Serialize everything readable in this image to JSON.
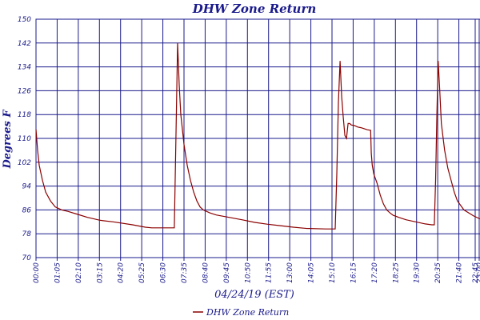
{
  "chart_data": {
    "type": "line",
    "title": "DHW Zone Return",
    "xlabel": "04/24/19 (EST)",
    "ylabel": "Degrees F",
    "ylim": [
      70,
      150
    ],
    "yticks": [
      70,
      78,
      86,
      94,
      102,
      110,
      118,
      126,
      134,
      142,
      150
    ],
    "xlim_minutes": [
      0,
      1380
    ],
    "xtick_labels": [
      "00:00",
      "01:05",
      "02:10",
      "03:15",
      "04:20",
      "05:25",
      "06:30",
      "07:35",
      "08:40",
      "09:45",
      "10:50",
      "11:55",
      "13:00",
      "14:05",
      "15:10",
      "16:15",
      "17:20",
      "18:25",
      "19:30",
      "20:35",
      "21:40",
      "22:45",
      "23:00"
    ],
    "xtick_minutes": [
      0,
      65,
      130,
      195,
      260,
      325,
      390,
      455,
      520,
      585,
      650,
      715,
      780,
      845,
      910,
      975,
      1040,
      1105,
      1170,
      1235,
      1300,
      1365,
      1380
    ],
    "grid": true,
    "legend_position": "bottom-center",
    "series": [
      {
        "name": "DHW Zone Return",
        "color": "#8b0000",
        "x": [
          0,
          5,
          10,
          20,
          30,
          45,
          60,
          80,
          100,
          130,
          160,
          200,
          240,
          300,
          340,
          360,
          390,
          415,
          430,
          435,
          440,
          445,
          450,
          460,
          470,
          480,
          490,
          500,
          510,
          520,
          540,
          560,
          600,
          640,
          680,
          720,
          760,
          800,
          840,
          900,
          930,
          935,
          940,
          945,
          950,
          955,
          960,
          965,
          970,
          975,
          980,
          990,
          1000,
          1010,
          1030,
          1040,
          1042,
          1045,
          1050,
          1060,
          1070,
          1080,
          1090,
          1100,
          1110,
          1130,
          1150,
          1180,
          1210,
          1230,
          1238,
          1242,
          1246,
          1250,
          1255,
          1260,
          1270,
          1280,
          1290,
          1300,
          1310,
          1330,
          1360,
          1380
        ],
        "y": [
          113,
          106,
          101,
          96,
          92,
          89,
          87,
          86,
          85.5,
          84.5,
          83.5,
          82.5,
          82,
          81,
          80.2,
          80,
          80,
          80,
          80,
          110,
          142,
          128,
          118,
          108,
          101,
          96,
          92,
          89,
          87,
          86,
          85,
          84.3,
          83.5,
          82.7,
          81.8,
          81.2,
          80.7,
          80.2,
          79.8,
          79.6,
          79.6,
          98,
          122,
          136,
          124,
          117,
          111,
          110,
          115,
          115,
          114.5,
          114.3,
          113.8,
          113.6,
          112.9,
          112.7,
          105,
          101,
          98,
          95,
          91,
          88,
          86,
          85,
          84.2,
          83.4,
          82.7,
          82,
          81.3,
          81,
          81,
          96,
          118,
          136,
          126,
          115,
          106,
          100,
          96,
          92,
          89,
          86,
          84,
          83
        ]
      }
    ]
  }
}
